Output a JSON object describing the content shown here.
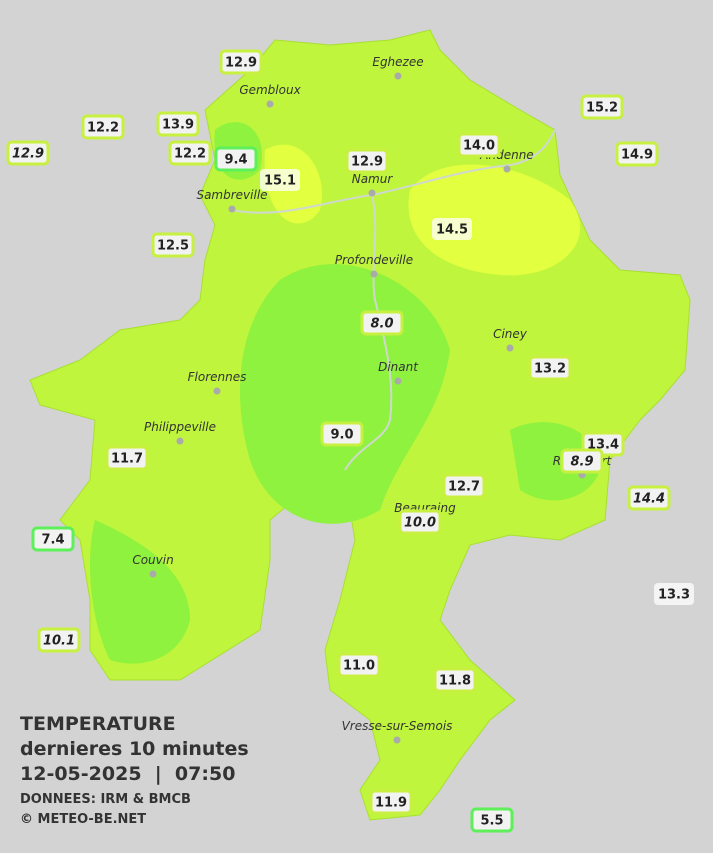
{
  "header": {
    "title": "TEMPERATURE",
    "subtitle": "dernieres 10 minutes",
    "datetime": "12-05-2025  |  07:50",
    "source": "DONNEES: IRM & BMCB",
    "copyright": "© METEO-BE.NET"
  },
  "cities": [
    "Eghezee",
    "Gembloux",
    "Andenne",
    "Namur",
    "Sambreville",
    "Profondeville",
    "Ciney",
    "Dinant",
    "Florennes",
    "Philippeville",
    "Beauraing",
    "Rochefort",
    "Couvin",
    "Vresse-sur-Semois"
  ],
  "stations": [
    "12.9",
    "12.2",
    "13.9",
    "12.2",
    "9.4",
    "15.1",
    "12.9",
    "12.9",
    "14.0",
    "15.2",
    "14.9",
    "14.5",
    "12.5",
    "8.0",
    "13.2",
    "9.0",
    "11.7",
    "13.4",
    "8.9",
    "12.7",
    "14.4",
    "10.0",
    "7.4",
    "13.3",
    "10.1",
    "11.0",
    "11.8",
    "11.9",
    "5.5"
  ]
}
